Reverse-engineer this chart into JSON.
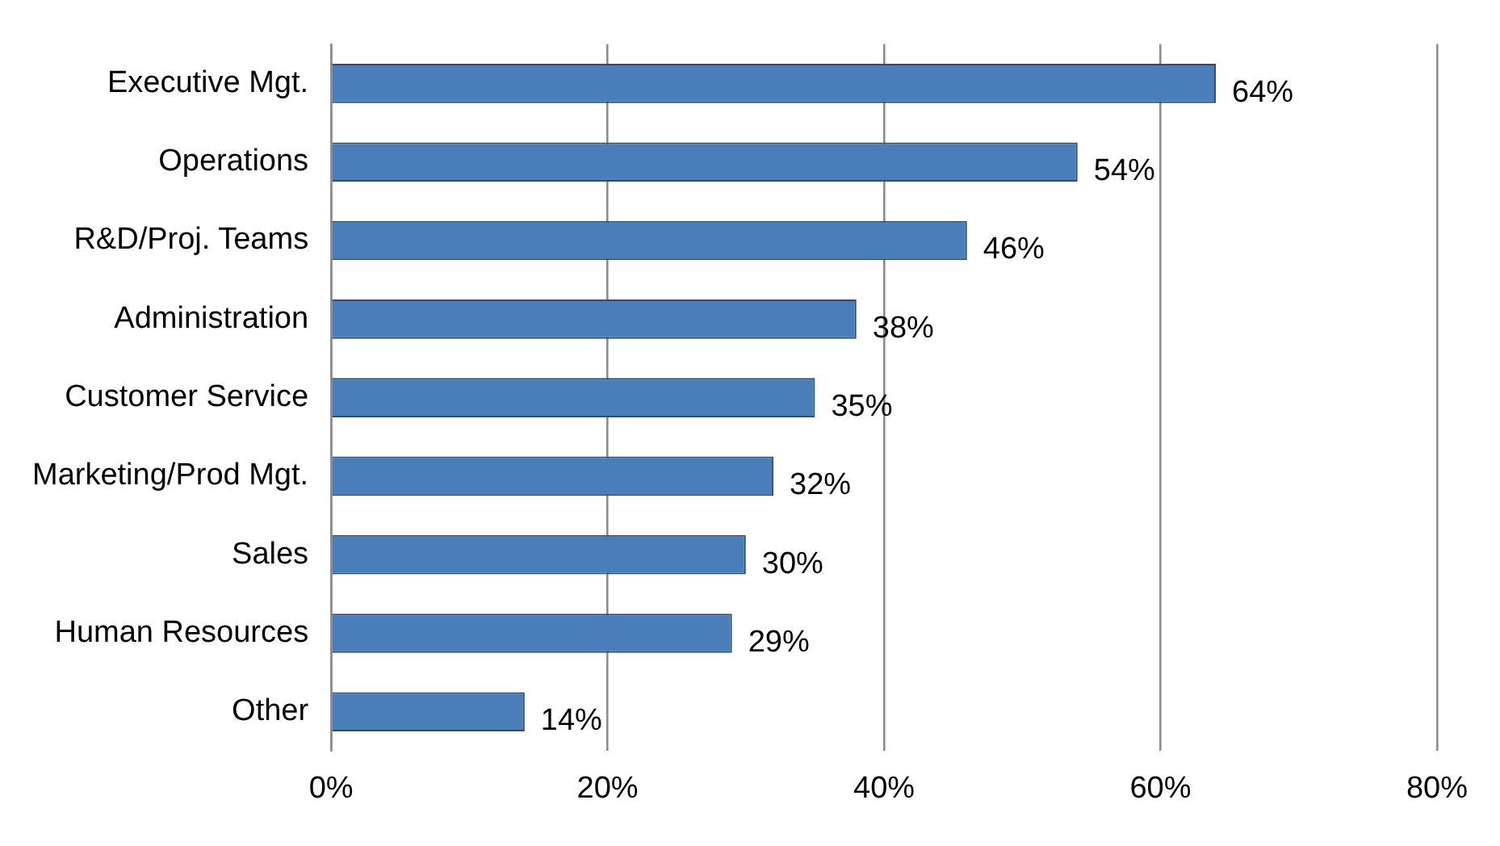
{
  "chart_data": {
    "type": "bar",
    "orientation": "horizontal",
    "categories": [
      "Executive Mgt.",
      "Operations",
      "R&D/Proj. Teams",
      "Administration",
      "Customer Service",
      "Marketing/Prod Mgt.",
      "Sales",
      "Human Resources",
      "Other"
    ],
    "values": [
      64,
      54,
      46,
      38,
      35,
      32,
      30,
      29,
      14
    ],
    "value_labels": [
      "64%",
      "54%",
      "46%",
      "38%",
      "35%",
      "32%",
      "30%",
      "29%",
      "14%"
    ],
    "color": "#4a7ebb",
    "xlim": [
      0,
      80
    ],
    "xticks": [
      {
        "value": 0,
        "label": "0%"
      },
      {
        "value": 20,
        "label": "20%"
      },
      {
        "value": 40,
        "label": "40%"
      },
      {
        "value": 60,
        "label": "60%"
      },
      {
        "value": 80,
        "label": "80%"
      }
    ],
    "grid": "x",
    "legend": false
  }
}
